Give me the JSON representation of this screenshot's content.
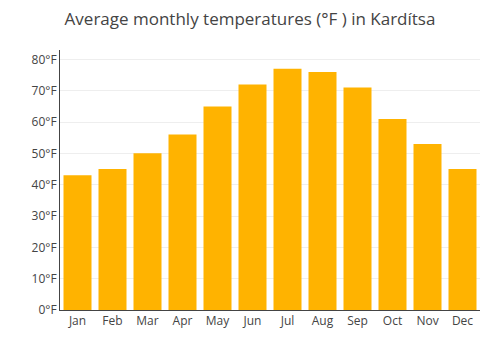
{
  "chart_data": {
    "type": "bar",
    "title": "Average monthly temperatures (°F ) in Kardítsa",
    "categories": [
      "Jan",
      "Feb",
      "Mar",
      "Apr",
      "May",
      "Jun",
      "Jul",
      "Aug",
      "Sep",
      "Oct",
      "Nov",
      "Dec"
    ],
    "values": [
      43,
      45,
      50,
      56,
      65,
      72,
      77,
      76,
      71,
      61,
      53,
      45
    ],
    "color": "#FFB300",
    "ylim": [
      0,
      83
    ],
    "yticks": [
      {
        "value": 0,
        "label": "0°F"
      },
      {
        "value": 10,
        "label": "10°F"
      },
      {
        "value": 20,
        "label": "20°F"
      },
      {
        "value": 30,
        "label": "30°F"
      },
      {
        "value": 40,
        "label": "40°F"
      },
      {
        "value": 50,
        "label": "50°F"
      },
      {
        "value": 60,
        "label": "60°F"
      },
      {
        "value": 70,
        "label": "70°F"
      },
      {
        "value": 80,
        "label": "80°F"
      }
    ],
    "grid": true
  }
}
